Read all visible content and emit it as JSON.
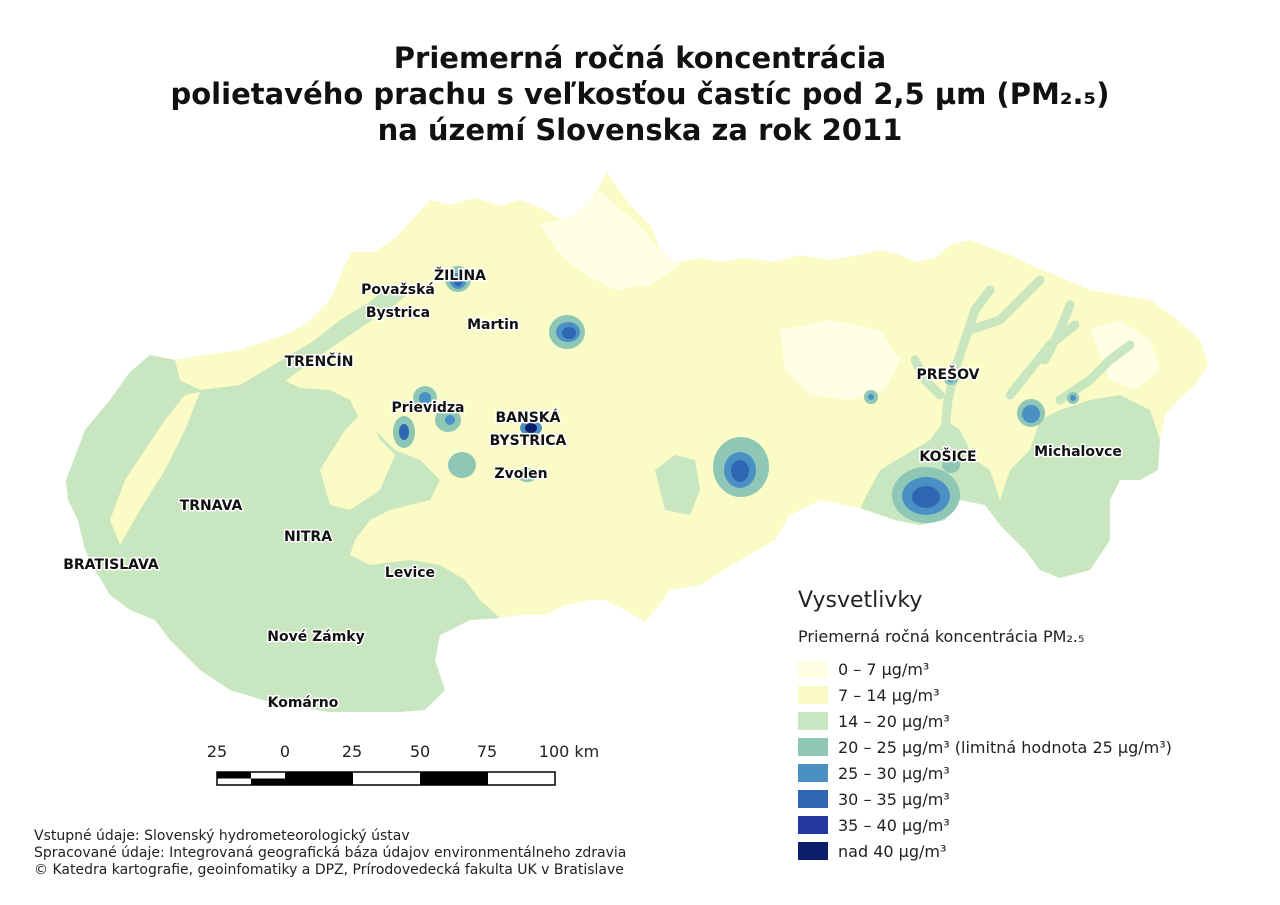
{
  "title": {
    "line1": "Priemerná ročná koncentrácia",
    "line2": "polietavého prachu s veľkosťou častíc pod 2,5 µm (PM₂.₅)",
    "line3": "na území Slovenska za rok 2011"
  },
  "cities": {
    "zilina": "ŽILINA",
    "povazska1": "Považská",
    "povazska2": "Bystrica",
    "martin": "Martin",
    "trencin": "TRENČÍN",
    "prievidza": "Prievidza",
    "banska1": "BANSKÁ",
    "banska2": "BYSTRICA",
    "zvolen": "Zvolen",
    "presov": "PREŠOV",
    "kosice": "KOŠICE",
    "michalovce": "Michalovce",
    "trnava": "TRNAVA",
    "nitra": "NITRA",
    "bratislava": "BRATISLAVA",
    "levice": "Levice",
    "nove_zamky": "Nové Zámky",
    "komarno": "Komárno"
  },
  "legend": {
    "title": "Vysvetlivky",
    "subtitle": "Priemerná ročná koncentrácia PM₂.₅",
    "items": [
      {
        "label": "0 – 7 µg/m³",
        "color": "#ffffe5"
      },
      {
        "label": "7 – 14 µg/m³",
        "color": "#fbfbc5"
      },
      {
        "label": "14 – 20 µg/m³",
        "color": "#c8e6bf"
      },
      {
        "label": "20 – 25 µg/m³ (limitná hodnota 25 µg/m³)",
        "color": "#8ec7b6"
      },
      {
        "label": "25 – 30 µg/m³",
        "color": "#4a90c5"
      },
      {
        "label": "30 – 35 µg/m³",
        "color": "#2e66b3"
      },
      {
        "label": "35 – 40 µg/m³",
        "color": "#2437a0"
      },
      {
        "label": "nad 40 µg/m³",
        "color": "#0c1d6e"
      }
    ]
  },
  "scale": {
    "labels": [
      "25",
      "0",
      "25",
      "50",
      "75",
      "100 km"
    ]
  },
  "credits": {
    "line1": "Vstupné údaje: Slovenský hydrometeorologický ústav",
    "line2": "Spracované údaje: Integrovaná geografická báza údajov environmentálneho zdravia",
    "line3": "© Katedra kartografie, geoinfomatiky a DPZ, Prírodovedecká fakulta UK v Bratislave"
  }
}
